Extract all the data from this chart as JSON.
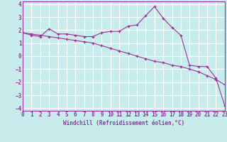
{
  "xlabel": "Windchill (Refroidissement éolien,°C)",
  "background_color": "#c8ecec",
  "line_color": "#993399",
  "grid_color": "#ffffff",
  "ylim": [
    -4.2,
    4.2
  ],
  "xlim": [
    0,
    23
  ],
  "yticks": [
    -4,
    -3,
    -2,
    -1,
    0,
    1,
    2,
    3,
    4
  ],
  "xticks": [
    0,
    1,
    2,
    3,
    4,
    5,
    6,
    7,
    8,
    9,
    10,
    11,
    12,
    13,
    14,
    15,
    16,
    17,
    18,
    19,
    20,
    21,
    22,
    23
  ],
  "line1_x": [
    0,
    1,
    2,
    3,
    4,
    5,
    6,
    7,
    8,
    9,
    10,
    11,
    12,
    13,
    14,
    15,
    16,
    17,
    18,
    19,
    20,
    21,
    22,
    23
  ],
  "line1_y": [
    1.8,
    1.6,
    1.5,
    2.1,
    1.7,
    1.7,
    1.6,
    1.5,
    1.5,
    1.8,
    1.9,
    1.9,
    2.3,
    2.4,
    3.1,
    3.8,
    2.9,
    2.2,
    1.6,
    -0.7,
    -0.8,
    -0.8,
    -1.7,
    -3.8
  ],
  "line2_x": [
    0,
    1,
    2,
    3,
    4,
    5,
    6,
    7,
    8,
    9,
    10,
    11,
    12,
    13,
    14,
    15,
    16,
    17,
    18,
    19,
    20,
    21,
    22,
    23
  ],
  "line2_y": [
    1.8,
    1.7,
    1.6,
    1.5,
    1.4,
    1.3,
    1.2,
    1.1,
    1.0,
    0.8,
    0.6,
    0.4,
    0.2,
    0.0,
    -0.2,
    -0.4,
    -0.5,
    -0.7,
    -0.8,
    -1.0,
    -1.2,
    -1.5,
    -1.8,
    -2.2
  ],
  "tick_fontsize": 5.5,
  "xlabel_fontsize": 5.5
}
